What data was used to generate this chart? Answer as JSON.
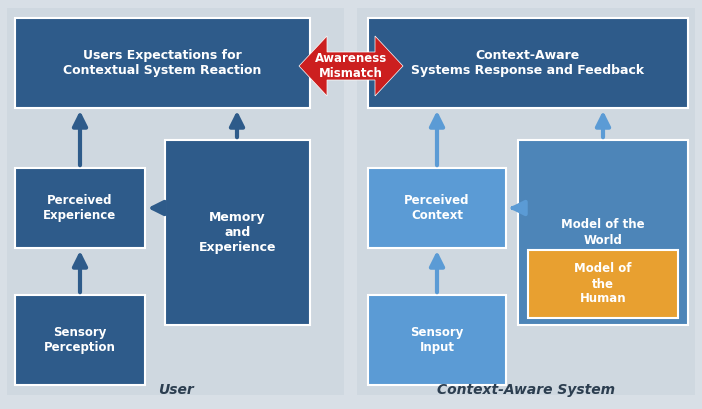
{
  "bg_color": "#d8dfe6",
  "panel_bg": "#cfd8e0",
  "dark_blue": "#2e5b8a",
  "mid_blue": "#4d85b8",
  "light_blue": "#5b9bd5",
  "orange": "#e8a030",
  "red_arrow": "#cc1f1f",
  "white": "#ffffff",
  "label_color": "#2c3e50",
  "user_label": "User",
  "system_label": "Context-Aware System",
  "awareness_text": "Awareness\nMismatch",
  "figw": 7.02,
  "figh": 4.09,
  "dpi": 100
}
